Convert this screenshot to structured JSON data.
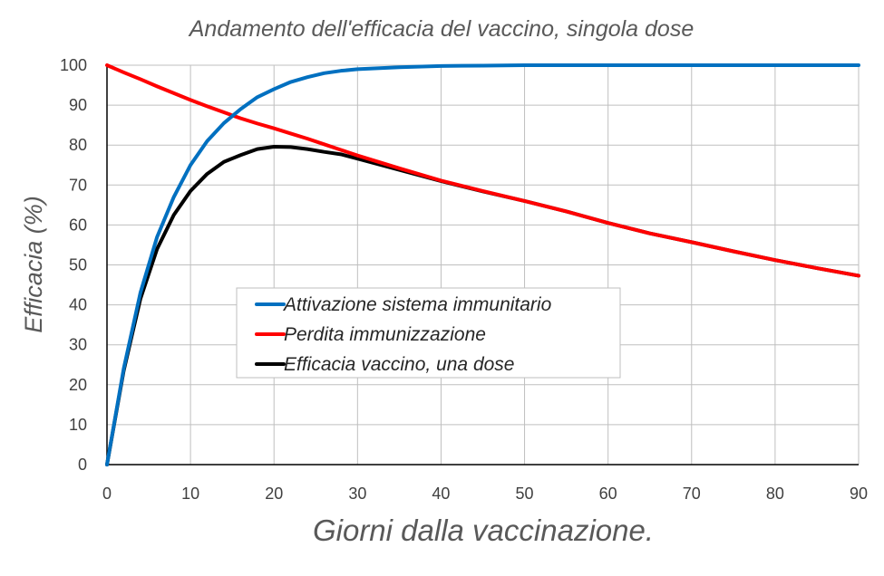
{
  "chart_data": {
    "type": "line",
    "title": "Andamento dell'efficacia del vaccino, singola dose",
    "xlabel": "Giorni dalla vaccinazione.",
    "ylabel": "Efficacia (%)",
    "xlim": [
      0,
      90
    ],
    "ylim": [
      0,
      100
    ],
    "xticks": [
      0,
      10,
      20,
      30,
      40,
      50,
      60,
      70,
      80,
      90
    ],
    "yticks": [
      0,
      10,
      20,
      30,
      40,
      50,
      60,
      70,
      80,
      90,
      100
    ],
    "grid": true,
    "legend_position": "center",
    "x": [
      0,
      2,
      4,
      6,
      8,
      10,
      12,
      14,
      16,
      18,
      20,
      22,
      24,
      26,
      28,
      30,
      35,
      40,
      45,
      50,
      55,
      60,
      65,
      70,
      75,
      80,
      85,
      90
    ],
    "series": [
      {
        "name": "Attivazione sistema immunitario",
        "color": "#0070c0",
        "values": [
          0,
          24,
          43,
          57,
          67,
          75,
          81,
          85.5,
          89,
          92,
          94,
          95.8,
          97,
          98,
          98.6,
          99,
          99.5,
          99.8,
          99.9,
          100,
          100,
          100,
          100,
          100,
          100,
          100,
          100,
          100
        ]
      },
      {
        "name": "Perdita immunizzazione",
        "color": "#ff0000",
        "values": [
          100,
          98.2,
          96.5,
          94.7,
          93,
          91.3,
          89.7,
          88.2,
          86.7,
          85.4,
          84.2,
          82.9,
          81.6,
          80.2,
          78.8,
          77.4,
          74.2,
          71.1,
          68.5,
          66,
          63.4,
          60.5,
          57.9,
          55.7,
          53.4,
          51.2,
          49.2,
          47.3
        ]
      },
      {
        "name": "Efficacia vaccino, una dose",
        "color": "#000000",
        "values": [
          0,
          23.5,
          41.5,
          54,
          62.5,
          68.5,
          72.8,
          75.8,
          77.5,
          79,
          79.6,
          79.5,
          79,
          78.3,
          77.7,
          76.6,
          73.8,
          71,
          68.4,
          66,
          63.4,
          60.5,
          57.9,
          55.7,
          53.4,
          51.2,
          49.2,
          47.3
        ]
      }
    ]
  }
}
